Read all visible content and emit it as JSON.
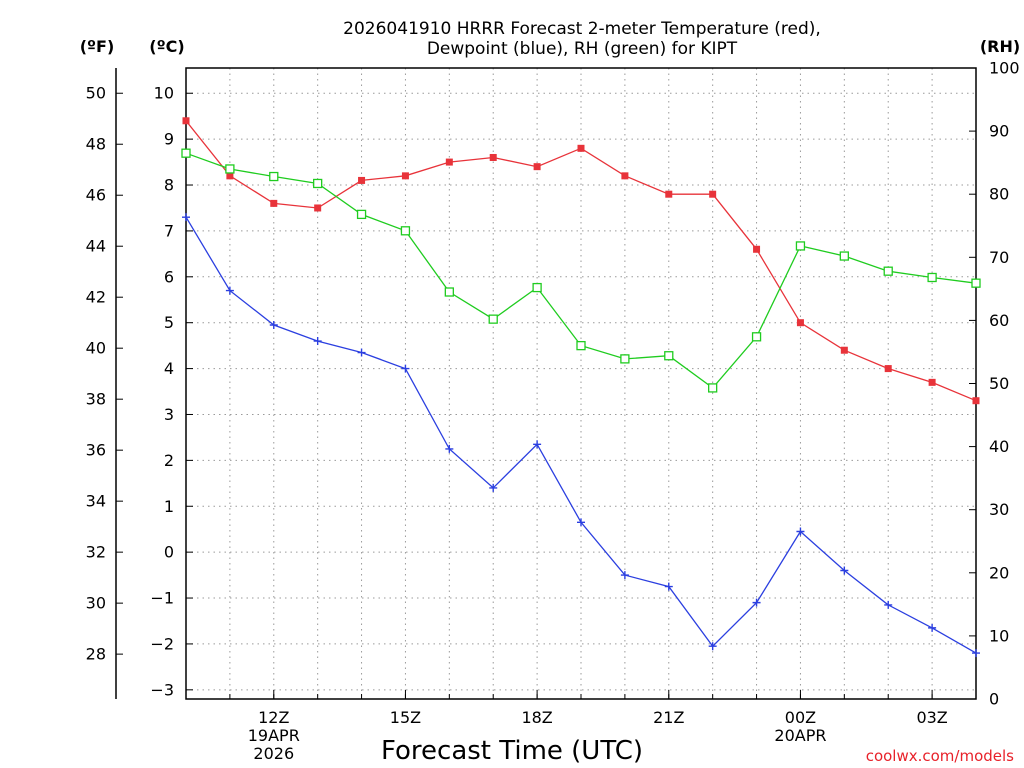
{
  "chart_data": {
    "type": "line",
    "title_lines": [
      "2026041910 HRRR Forecast 2-meter Temperature (red),",
      "Dewpoint (blue), RH (green) for KIPT"
    ],
    "xlabel": "Forecast Time (UTC)",
    "credit": "coolwx.com/models",
    "unit_labels": {
      "fahrenheit": "(ºF)",
      "celsius": "(ºC)",
      "rh": "(RH)"
    },
    "x_hours": [
      10,
      11,
      12,
      13,
      14,
      15,
      16,
      17,
      18,
      19,
      20,
      21,
      22,
      23,
      24,
      25,
      26,
      27,
      28
    ],
    "xlim": [
      10,
      28
    ],
    "x_ticks": [
      {
        "hour": 12,
        "lines": [
          "12Z",
          "19APR",
          "2026"
        ]
      },
      {
        "hour": 15,
        "lines": [
          "15Z"
        ]
      },
      {
        "hour": 18,
        "lines": [
          "18Z"
        ]
      },
      {
        "hour": 21,
        "lines": [
          "21Z"
        ]
      },
      {
        "hour": 24,
        "lines": [
          "00Z",
          "20APR"
        ]
      },
      {
        "hour": 27,
        "lines": [
          "03Z"
        ]
      }
    ],
    "celsius_axis": {
      "ylim": [
        -3.2,
        10.55
      ],
      "ticks": [
        -3,
        -2,
        -1,
        0,
        1,
        2,
        3,
        4,
        5,
        6,
        7,
        8,
        9,
        10
      ]
    },
    "fahrenheit_axis": {
      "ticks": [
        28,
        30,
        32,
        34,
        36,
        38,
        40,
        42,
        44,
        46,
        48,
        50
      ]
    },
    "rh_axis": {
      "ylim": [
        0,
        100
      ],
      "ticks": [
        0,
        10,
        20,
        30,
        40,
        50,
        60,
        70,
        80,
        90,
        100
      ]
    },
    "series": [
      {
        "name": "Temperature",
        "axis": "celsius",
        "color": "#e8333a",
        "marker": "filled-square",
        "values": [
          9.4,
          8.2,
          7.6,
          7.5,
          8.1,
          8.2,
          8.5,
          8.6,
          8.4,
          8.8,
          8.2,
          7.8,
          7.8,
          6.6,
          5.0,
          4.4,
          4.0,
          3.7,
          3.3
        ]
      },
      {
        "name": "Dewpoint",
        "axis": "celsius",
        "color": "#2b3fe0",
        "marker": "plus",
        "values": [
          7.3,
          5.7,
          4.95,
          4.6,
          4.35,
          4.0,
          2.25,
          1.4,
          2.35,
          0.65,
          -0.5,
          -0.75,
          -2.05,
          -1.1,
          0.45,
          -0.4,
          -1.15,
          -1.65,
          -2.2
        ]
      },
      {
        "name": "RH",
        "axis": "rh",
        "color": "#1fcc1f",
        "marker": "open-square",
        "values": [
          86.5,
          84.0,
          82.8,
          81.7,
          76.8,
          74.2,
          64.5,
          60.2,
          65.2,
          56.0,
          53.9,
          54.4,
          49.3,
          57.4,
          71.8,
          70.2,
          67.8,
          66.8,
          65.9
        ]
      }
    ]
  }
}
